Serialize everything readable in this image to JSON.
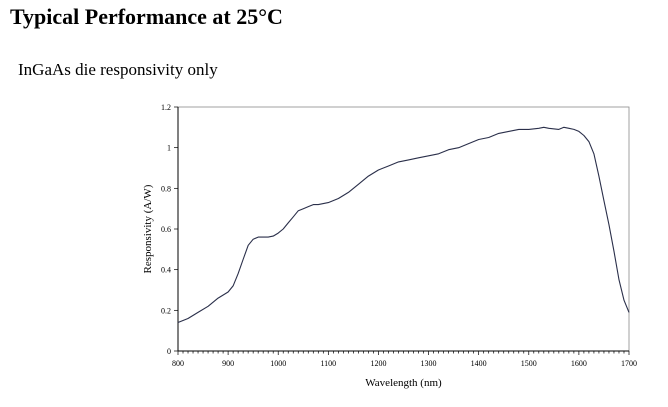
{
  "page_title": "Typical Performance at 25°C",
  "subtitle": "InGaAs die responsivity only",
  "chart_data": {
    "type": "line",
    "title": "",
    "xlabel": "Wavelength (nm)",
    "ylabel": "Responsivity (A/W)",
    "xlim": [
      800,
      1700
    ],
    "ylim": [
      0,
      1.2
    ],
    "x_ticks": [
      "800",
      "900",
      "1000",
      "1100",
      "1200",
      "1300",
      "1400",
      "1500",
      "1600",
      "1700"
    ],
    "y_ticks": [
      "0",
      "0.2",
      "0.4",
      "0.6",
      "0.8",
      "1",
      "1.2"
    ],
    "grid": false,
    "legend": "none",
    "line_color": "#2a2f4a",
    "series": [
      {
        "x": [
          800,
          820,
          840,
          860,
          880,
          900,
          910,
          920,
          930,
          940,
          950,
          960,
          970,
          980,
          990,
          1000,
          1010,
          1020,
          1030,
          1040,
          1050,
          1060,
          1070,
          1080,
          1090,
          1100,
          1120,
          1140,
          1160,
          1180,
          1200,
          1220,
          1240,
          1260,
          1280,
          1300,
          1320,
          1340,
          1360,
          1380,
          1400,
          1420,
          1440,
          1460,
          1480,
          1500,
          1520,
          1530,
          1540,
          1560,
          1570,
          1580,
          1590,
          1600,
          1610,
          1620,
          1630,
          1640,
          1650,
          1660,
          1670,
          1680,
          1690,
          1700
        ],
        "y": [
          0.14,
          0.16,
          0.19,
          0.22,
          0.26,
          0.29,
          0.32,
          0.38,
          0.45,
          0.52,
          0.55,
          0.56,
          0.56,
          0.56,
          0.565,
          0.58,
          0.6,
          0.63,
          0.66,
          0.69,
          0.7,
          0.71,
          0.72,
          0.72,
          0.725,
          0.73,
          0.75,
          0.78,
          0.82,
          0.86,
          0.89,
          0.91,
          0.93,
          0.94,
          0.95,
          0.96,
          0.97,
          0.99,
          1.0,
          1.02,
          1.04,
          1.05,
          1.07,
          1.08,
          1.09,
          1.09,
          1.095,
          1.1,
          1.095,
          1.09,
          1.1,
          1.095,
          1.09,
          1.08,
          1.06,
          1.03,
          0.97,
          0.86,
          0.74,
          0.62,
          0.49,
          0.35,
          0.25,
          0.19
        ]
      }
    ]
  }
}
